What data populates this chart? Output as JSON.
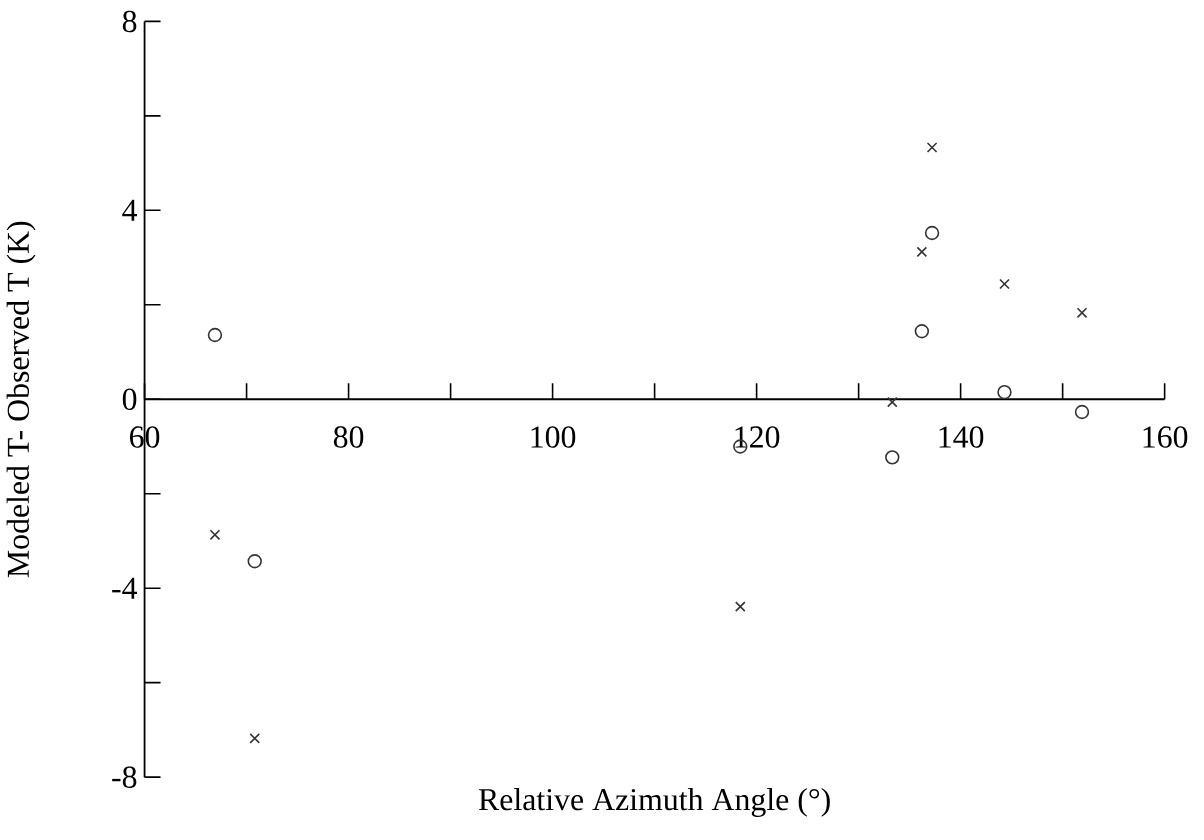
{
  "chart_data": {
    "type": "scatter",
    "xlabel": "Relative Azimuth Angle (°)",
    "ylabel": "Modeled T- Observed T (K)",
    "x": [
      66.9,
      70.8,
      118.4,
      133.3,
      136.2,
      137.2,
      144.3,
      151.9
    ],
    "series": [
      {
        "color": "#333333",
        "marker": "circle",
        "values": [
          1.36,
          -3.43,
          -1.0,
          -1.23,
          1.44,
          3.52,
          0.15,
          -0.27
        ]
      },
      {
        "color": "#333333",
        "marker": "cross",
        "values": [
          -2.87,
          -7.18,
          -4.39,
          -0.06,
          3.12,
          5.33,
          2.44,
          1.83
        ]
      }
    ],
    "xlim": [
      60,
      160
    ],
    "ylim": [
      -8,
      8
    ],
    "xticks": [
      60,
      {
        "value": 70,
        "label": null
      },
      80,
      {
        "value": 90,
        "label": null
      },
      100,
      {
        "value": 110,
        "label": null
      },
      120,
      {
        "value": 130,
        "label": null
      },
      140,
      {
        "value": 150,
        "label": null
      },
      160
    ],
    "yticks": [
      -8,
      {
        "value": -6,
        "label": null
      },
      -4,
      {
        "value": -2,
        "label": null
      },
      0,
      {
        "value": 2,
        "label": null
      },
      4,
      {
        "value": 6,
        "label": null
      },
      8
    ],
    "grid": false
  }
}
